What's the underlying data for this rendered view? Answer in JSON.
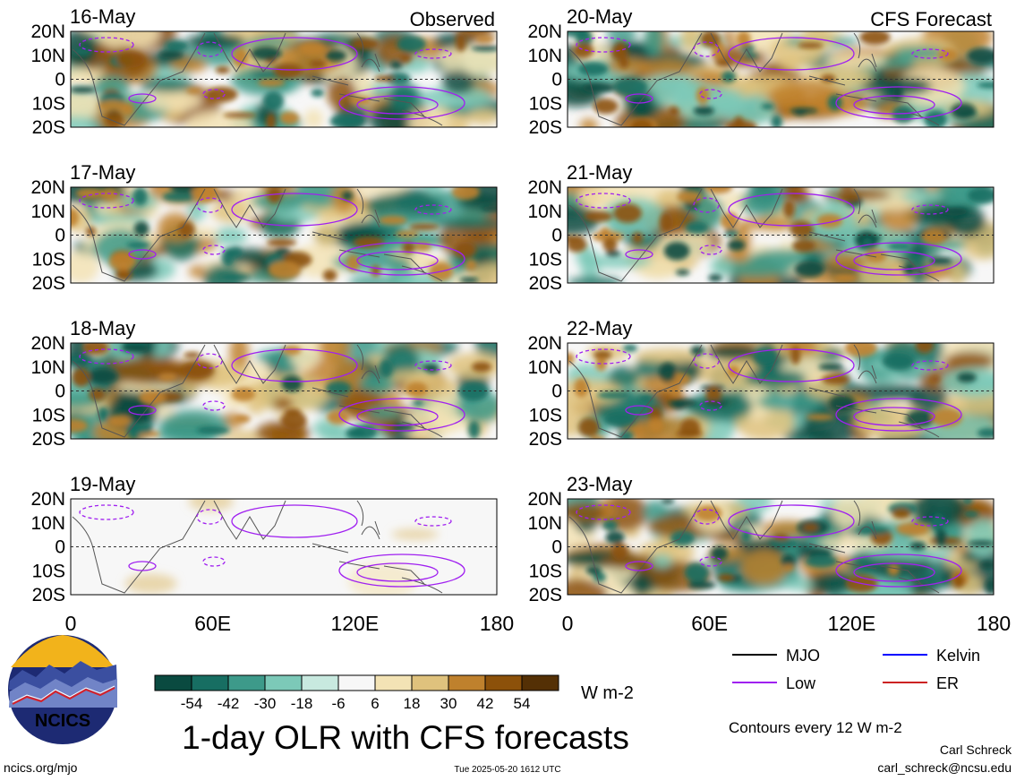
{
  "chart_data": [
    {
      "type": "heatmap",
      "date": "16-May",
      "label": "Observed"
    },
    {
      "type": "heatmap",
      "date": "17-May",
      "label": ""
    },
    {
      "type": "heatmap",
      "date": "18-May",
      "label": ""
    },
    {
      "type": "heatmap",
      "date": "19-May",
      "label": ""
    },
    {
      "type": "heatmap",
      "date": "20-May",
      "label": "CFS Forecast"
    },
    {
      "type": "heatmap",
      "date": "21-May",
      "label": ""
    },
    {
      "type": "heatmap",
      "date": "22-May",
      "label": ""
    },
    {
      "type": "heatmap",
      "date": "23-May",
      "label": ""
    }
  ],
  "axes": {
    "y_ticks": [
      "20N",
      "10N",
      "0",
      "10S",
      "20S"
    ],
    "x_ticks": [
      "0",
      "60E",
      "120E",
      "180"
    ],
    "xlim": [
      0,
      180
    ],
    "ylim": [
      -20,
      20
    ]
  },
  "colorbar": {
    "tick_labels": [
      "-54",
      "-42",
      "-30",
      "-18",
      "-6",
      "6",
      "18",
      "30",
      "42",
      "54"
    ],
    "colors": [
      "#0a4a40",
      "#176e62",
      "#3d9a8a",
      "#7cc9b8",
      "#c8e9df",
      "#f7f7f7",
      "#f3e3b5",
      "#dfc27d",
      "#bf812d",
      "#8c510a",
      "#543005"
    ],
    "unit": "W m-2"
  },
  "legend": {
    "entries": [
      {
        "label": "MJO",
        "color": "#000000"
      },
      {
        "label": "Kelvin",
        "color": "#0000ff"
      },
      {
        "label": "Low",
        "color": "#a020f0"
      },
      {
        "label": "ER",
        "color": "#cc2222"
      }
    ]
  },
  "logo_text": "NCICS",
  "title": "1-day OLR with CFS forecasts",
  "contour_note": "Contours every 12 W m-2",
  "credit_name": "Carl Schreck",
  "credit_email": "carl_schreck@ncsu.edu",
  "footer_left": "ncics.org/mjo",
  "footer_center": "Tue 2025-05-20 1612 UTC"
}
